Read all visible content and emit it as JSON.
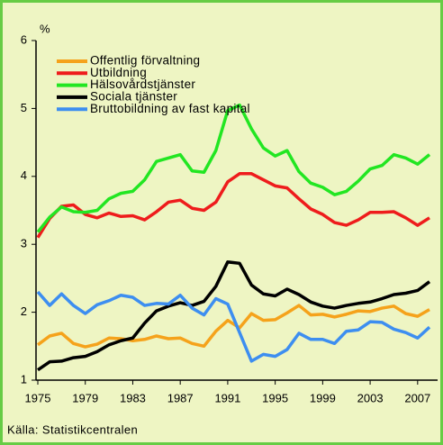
{
  "chart_data": {
    "type": "line",
    "y_label": "%",
    "source": "Källa: Statistikcentralen",
    "x": [
      1975,
      1976,
      1977,
      1978,
      1979,
      1980,
      1981,
      1982,
      1983,
      1984,
      1985,
      1986,
      1987,
      1988,
      1989,
      1990,
      1991,
      1992,
      1993,
      1994,
      1995,
      1996,
      1997,
      1998,
      1999,
      2000,
      2001,
      2002,
      2003,
      2004,
      2005,
      2006,
      2007,
      2008
    ],
    "xlim": [
      1975,
      2008
    ],
    "xticks": [
      1975,
      1979,
      1983,
      1987,
      1991,
      1995,
      1999,
      2003,
      2007
    ],
    "ylim": [
      1,
      6
    ],
    "yticks": [
      1,
      2,
      3,
      4,
      5,
      6
    ],
    "series": [
      {
        "name": "Offentlig förvaltning",
        "color": "#f5a21b",
        "values": [
          1.52,
          1.65,
          1.69,
          1.54,
          1.49,
          1.53,
          1.62,
          1.61,
          1.58,
          1.6,
          1.65,
          1.61,
          1.62,
          1.54,
          1.5,
          1.72,
          1.88,
          1.77,
          1.98,
          1.88,
          1.89,
          1.99,
          2.1,
          1.96,
          1.97,
          1.93,
          1.97,
          2.02,
          2.01,
          2.06,
          2.09,
          1.98,
          1.94,
          2.04
        ]
      },
      {
        "name": "Utbildning",
        "color": "#ee1c1c",
        "values": [
          3.1,
          3.38,
          3.56,
          3.58,
          3.44,
          3.39,
          3.46,
          3.41,
          3.42,
          3.36,
          3.48,
          3.62,
          3.65,
          3.53,
          3.5,
          3.62,
          3.92,
          4.04,
          4.04,
          3.95,
          3.86,
          3.83,
          3.67,
          3.52,
          3.44,
          3.32,
          3.28,
          3.36,
          3.47,
          3.47,
          3.48,
          3.39,
          3.28,
          3.39
        ]
      },
      {
        "name": "Hälsovårdstjänster",
        "color": "#22e622",
        "values": [
          3.18,
          3.4,
          3.55,
          3.48,
          3.47,
          3.5,
          3.67,
          3.75,
          3.78,
          3.95,
          4.22,
          4.27,
          4.32,
          4.08,
          4.06,
          4.38,
          4.97,
          5.05,
          4.7,
          4.42,
          4.3,
          4.38,
          4.07,
          3.9,
          3.84,
          3.73,
          3.78,
          3.93,
          4.11,
          4.16,
          4.32,
          4.27,
          4.18,
          4.32
        ]
      },
      {
        "name": "Sociala tjänster",
        "color": "#000000",
        "values": [
          1.15,
          1.27,
          1.28,
          1.33,
          1.35,
          1.42,
          1.52,
          1.58,
          1.62,
          1.84,
          2.02,
          2.09,
          2.14,
          2.1,
          2.16,
          2.38,
          2.74,
          2.72,
          2.4,
          2.27,
          2.24,
          2.34,
          2.26,
          2.15,
          2.09,
          2.06,
          2.1,
          2.13,
          2.15,
          2.2,
          2.26,
          2.28,
          2.32,
          2.45
        ]
      },
      {
        "name": "Bruttobildning av fast kapital",
        "color": "#3d8ef0",
        "values": [
          2.3,
          2.1,
          2.27,
          2.1,
          1.98,
          2.11,
          2.17,
          2.25,
          2.22,
          2.1,
          2.13,
          2.12,
          2.25,
          2.06,
          1.96,
          2.2,
          2.12,
          1.7,
          1.28,
          1.38,
          1.35,
          1.45,
          1.69,
          1.6,
          1.6,
          1.54,
          1.72,
          1.74,
          1.86,
          1.85,
          1.75,
          1.7,
          1.62,
          1.78
        ]
      }
    ]
  }
}
